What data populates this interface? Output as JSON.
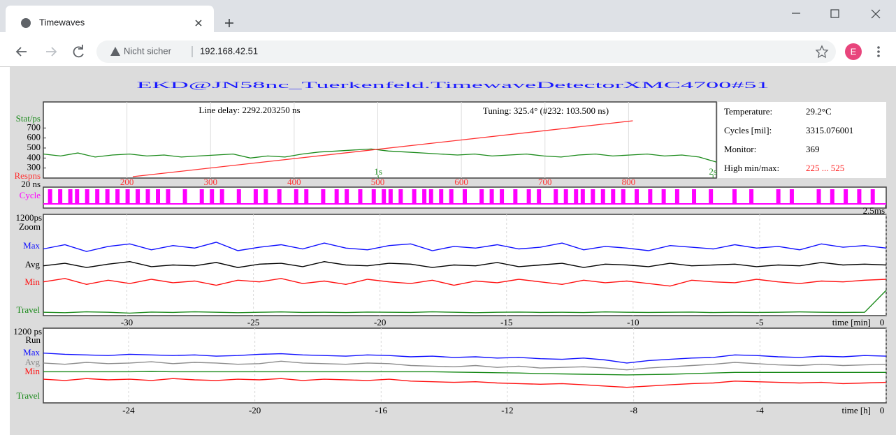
{
  "browser": {
    "tab_title": "Timewaves",
    "security": "Nicht sicher",
    "url": "192.168.42.51",
    "avatar": "E"
  },
  "title": "EKD@JN58nc_Tuerkenfeld.TimewaveDetectorXMC4700#51",
  "info": {
    "rows": [
      {
        "label": "Temperature:",
        "value": "29.2°C"
      },
      {
        "label": "Cycles [mil]:",
        "value": "3315.076001"
      },
      {
        "label": "Monitor:",
        "value": "369"
      },
      {
        "label": "High min/max:",
        "value": "225 ... 525"
      }
    ]
  },
  "chart_data": [
    {
      "type": "stat",
      "title": "Line delay: 2292.203250 ns",
      "subtitle": "Tuning: 325.4° (#232: 103.500 ns)",
      "ylim": [
        200,
        960
      ],
      "yticks": [
        300,
        400,
        500,
        600,
        700
      ],
      "xlim": [
        0,
        2.01
      ],
      "xticks": [
        {
          "value": 1,
          "label": "1s"
        },
        {
          "value": 2,
          "label": "2s"
        }
      ],
      "series": [
        {
          "name": "Stat/ps",
          "color": "#1a8a1a",
          "values": [
            440,
            420,
            450,
            410,
            430,
            440,
            420,
            430,
            410,
            420,
            430,
            440,
            400,
            420,
            410,
            440,
            460,
            470,
            480,
            490,
            470,
            460,
            450,
            440,
            430,
            440,
            420,
            430,
            440,
            420,
            410,
            430,
            440,
            420,
            430,
            440,
            420,
            430,
            410,
            360
          ]
        }
      ],
      "response": {
        "name": "Respns",
        "unit_label": "20 ns",
        "color": "#ff3030",
        "xlim": [
          100,
          905
        ],
        "xticks": [
          200,
          300,
          400,
          500,
          600,
          700,
          800
        ],
        "x": [
          207,
          805
        ],
        "values": [
          214,
          772
        ]
      }
    },
    {
      "type": "pulse",
      "label": "Cycle",
      "color": "#ff00ff",
      "xlim": [
        0,
        2.5
      ],
      "xticks": [
        {
          "value": 2.5,
          "label": "2.5ms"
        }
      ],
      "values": [
        0.02,
        0.05,
        0.08,
        0.1,
        0.13,
        0.16,
        0.19,
        0.22,
        0.25,
        0.28,
        0.31,
        0.34,
        0.37,
        0.42,
        0.47,
        0.5,
        0.53,
        0.58,
        0.63,
        0.66,
        0.7,
        0.75,
        0.78,
        0.83,
        0.87,
        0.9,
        0.94,
        0.98,
        1.01,
        1.03,
        1.06,
        1.1,
        1.13,
        1.15,
        1.18,
        1.21,
        1.25,
        1.3,
        1.33,
        1.36,
        1.4,
        1.44,
        1.47,
        1.52,
        1.55,
        1.58,
        1.6,
        1.63,
        1.66,
        1.69,
        1.72,
        1.76,
        1.8,
        1.84,
        1.88,
        1.93,
        1.98,
        2.05,
        2.1,
        2.18,
        2.22,
        2.3,
        2.34,
        2.38,
        2.42,
        2.46
      ]
    },
    {
      "type": "line",
      "label": "Zoom",
      "ylim": [
        0,
        1200
      ],
      "yticks": [
        {
          "value": 1200,
          "label": "1200ps"
        }
      ],
      "xlim": [
        -33.3,
        0
      ],
      "xticks": [
        -30,
        -25,
        -20,
        -15,
        -10,
        -5,
        0
      ],
      "x_label": "time [min]",
      "series": [
        {
          "name": "Max",
          "color": "#1010ff",
          "values": [
            790,
            840,
            760,
            820,
            850,
            780,
            830,
            800,
            870,
            770,
            810,
            840,
            790,
            860,
            800,
            780,
            830,
            850,
            770,
            820,
            800,
            840,
            790,
            810,
            860,
            780,
            820,
            800,
            770,
            830,
            810,
            790,
            840,
            800,
            820,
            780,
            850,
            810,
            830,
            800
          ]
        },
        {
          "name": "Avg",
          "color": "#000000",
          "values": [
            590,
            620,
            570,
            610,
            640,
            580,
            600,
            590,
            630,
            570,
            610,
            620,
            580,
            640,
            600,
            590,
            620,
            610,
            570,
            600,
            590,
            630,
            580,
            600,
            620,
            570,
            610,
            600,
            580,
            620,
            590,
            600,
            610,
            580,
            600,
            590,
            630,
            600,
            610,
            600
          ]
        },
        {
          "name": "Min",
          "color": "#ff1010",
          "values": [
            400,
            440,
            370,
            420,
            380,
            430,
            390,
            410,
            360,
            420,
            400,
            440,
            380,
            410,
            370,
            430,
            400,
            380,
            420,
            360,
            410,
            390,
            430,
            400,
            370,
            420,
            390,
            410,
            380,
            350,
            420,
            400,
            390,
            430,
            400,
            380,
            410,
            400,
            420,
            430
          ]
        },
        {
          "name": "Travel",
          "color": "#1a8a1a",
          "values": [
            40,
            35,
            45,
            40,
            30,
            42,
            38,
            45,
            40,
            35,
            40,
            44,
            38,
            40,
            36,
            42,
            40,
            38,
            45,
            40,
            35,
            40,
            42,
            38,
            40,
            36,
            44,
            40,
            38,
            40,
            42,
            36,
            40,
            38,
            40,
            44,
            40,
            38,
            40,
            300
          ]
        }
      ]
    },
    {
      "type": "line",
      "label": "Run",
      "ylim": [
        0,
        1200
      ],
      "yticks": [
        {
          "value": 1200,
          "label": "1200 ps"
        }
      ],
      "xlim": [
        -26.7,
        0
      ],
      "xticks": [
        -24,
        -20,
        -16,
        -12,
        -8,
        -4,
        0
      ],
      "x_label": "time [h]",
      "series": [
        {
          "name": "Max",
          "color": "#1010ff",
          "values": [
            800,
            780,
            770,
            760,
            780,
            770,
            760,
            770,
            750,
            760,
            780,
            790,
            770,
            760,
            750,
            770,
            760,
            740,
            750,
            730,
            740,
            720,
            730,
            710,
            700,
            720,
            690,
            640,
            680,
            700,
            720,
            730,
            770,
            760,
            740,
            730,
            750,
            740,
            760,
            750
          ]
        },
        {
          "name": "Avg",
          "color": "#8c8c8c",
          "values": [
            640,
            620,
            650,
            630,
            640,
            660,
            630,
            650,
            640,
            620,
            630,
            670,
            640,
            630,
            620,
            640,
            630,
            600,
            590,
            580,
            600,
            570,
            590,
            560,
            570,
            580,
            560,
            530,
            560,
            580,
            600,
            620,
            650,
            630,
            610,
            600,
            620,
            600,
            610,
            620
          ]
        },
        {
          "name": "Min",
          "color": "#ff1010",
          "values": [
            380,
            360,
            390,
            370,
            380,
            360,
            390,
            370,
            360,
            380,
            370,
            390,
            360,
            380,
            370,
            360,
            380,
            350,
            340,
            330,
            340,
            320,
            310,
            300,
            310,
            290,
            270,
            250,
            270,
            290,
            310,
            320,
            350,
            340,
            330,
            320,
            330,
            310,
            320,
            330
          ]
        },
        {
          "name": "Travel",
          "color": "#1a8a1a",
          "values": [
            500,
            500,
            500,
            500,
            500,
            505,
            500,
            500,
            500,
            500,
            500,
            500,
            500,
            500,
            500,
            500,
            500,
            500,
            500,
            495,
            490,
            485,
            480,
            470,
            465,
            460,
            455,
            450,
            455,
            460,
            470,
            480,
            490,
            490,
            490,
            490,
            490,
            490,
            490,
            490
          ]
        }
      ]
    }
  ]
}
